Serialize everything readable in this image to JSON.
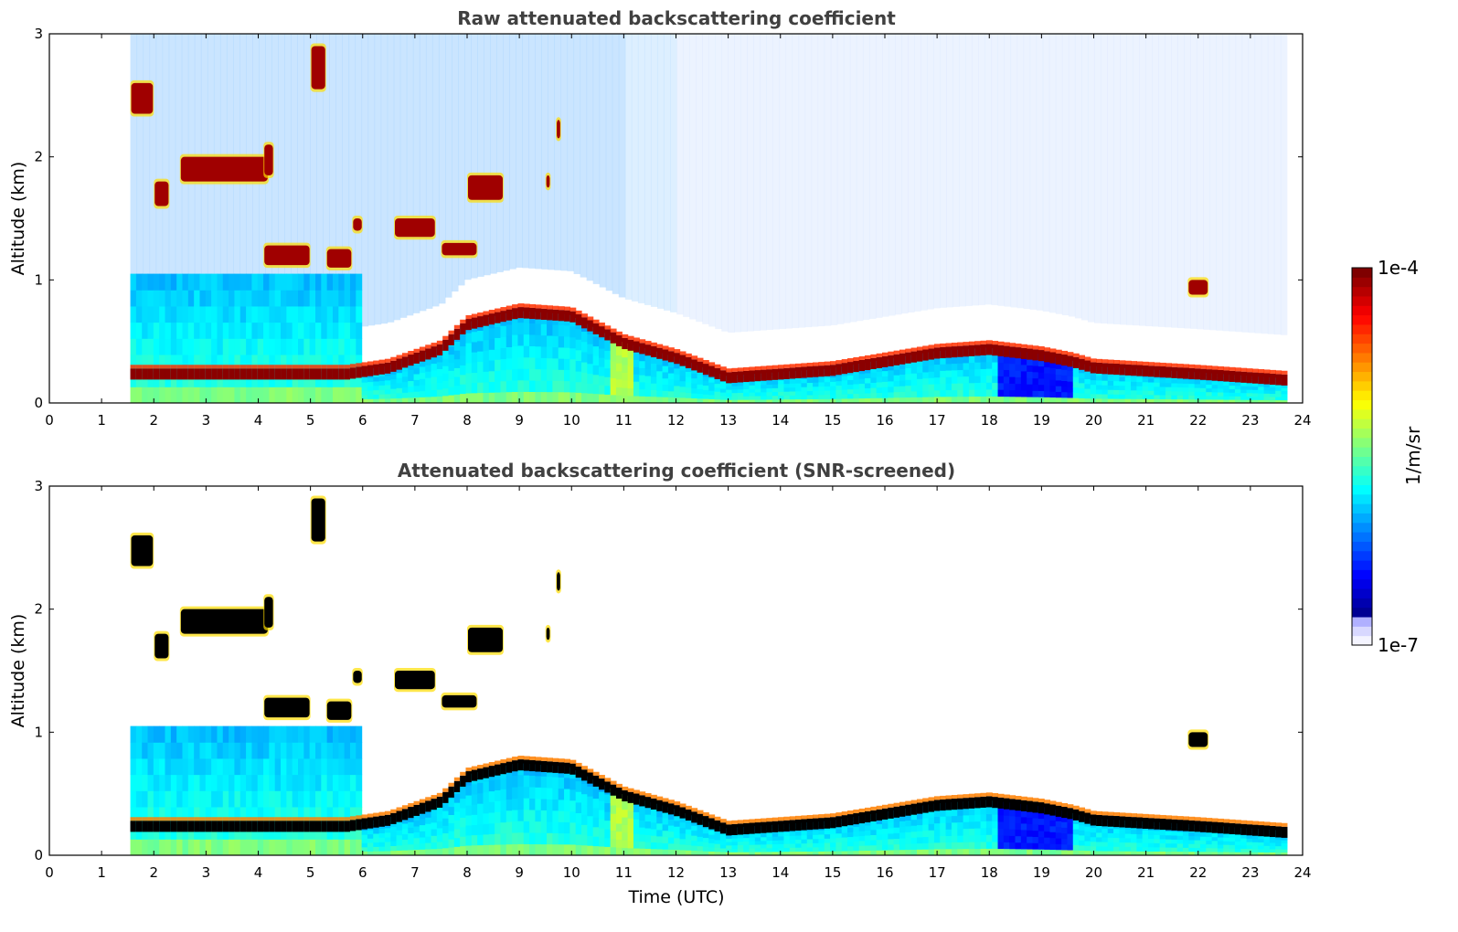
{
  "chart_data": [
    {
      "type": "heatmap",
      "title": "Raw attenuated backscattering coefficient",
      "xlabel": "",
      "ylabel": "Altitude (km)",
      "xlim": [
        0,
        24
      ],
      "ylim": [
        0,
        3
      ],
      "x_ticks": [
        "0",
        "1",
        "2",
        "3",
        "4",
        "5",
        "6",
        "7",
        "8",
        "9",
        "10",
        "11",
        "12",
        "13",
        "14",
        "15",
        "16",
        "17",
        "18",
        "19",
        "20",
        "21",
        "22",
        "23",
        "24"
      ],
      "y_ticks": [
        "0",
        "1",
        "2",
        "3"
      ],
      "data_start_time": 1.55,
      "data_end_time": 23.7,
      "layer_top_km": [
        [
          1.55,
          0.25
        ],
        [
          5.7,
          0.25
        ],
        [
          6.5,
          0.3
        ],
        [
          7.5,
          0.45
        ],
        [
          8.0,
          0.65
        ],
        [
          9.0,
          0.75
        ],
        [
          10.0,
          0.72
        ],
        [
          11.0,
          0.5
        ],
        [
          12.0,
          0.38
        ],
        [
          13.0,
          0.22
        ],
        [
          14.0,
          0.25
        ],
        [
          15.0,
          0.28
        ],
        [
          16.0,
          0.35
        ],
        [
          17.0,
          0.42
        ],
        [
          18.0,
          0.45
        ],
        [
          19.0,
          0.4
        ],
        [
          19.6,
          0.35
        ],
        [
          20.0,
          0.3
        ],
        [
          22.0,
          0.25
        ],
        [
          23.7,
          0.2
        ]
      ],
      "clouds": [
        {
          "t": [
            1.55,
            2.0
          ],
          "alt": [
            2.35,
            2.6
          ]
        },
        {
          "t": [
            2.0,
            2.3
          ],
          "alt": [
            1.6,
            1.8
          ]
        },
        {
          "t": [
            2.5,
            4.2
          ],
          "alt": [
            1.8,
            2.0
          ]
        },
        {
          "t": [
            4.1,
            4.3
          ],
          "alt": [
            1.85,
            2.1
          ]
        },
        {
          "t": [
            4.1,
            5.0
          ],
          "alt": [
            1.12,
            1.28
          ]
        },
        {
          "t": [
            5.0,
            5.3
          ],
          "alt": [
            2.55,
            2.9
          ]
        },
        {
          "t": [
            5.3,
            5.8
          ],
          "alt": [
            1.1,
            1.25
          ]
        },
        {
          "t": [
            5.8,
            6.0
          ],
          "alt": [
            1.4,
            1.5
          ]
        },
        {
          "t": [
            6.6,
            7.4
          ],
          "alt": [
            1.35,
            1.5
          ]
        },
        {
          "t": [
            7.5,
            8.2
          ],
          "alt": [
            1.2,
            1.3
          ]
        },
        {
          "t": [
            8.0,
            8.7
          ],
          "alt": [
            1.65,
            1.85
          ]
        },
        {
          "t": [
            9.5,
            9.6
          ],
          "alt": [
            1.75,
            1.85
          ]
        },
        {
          "t": [
            9.7,
            9.8
          ],
          "alt": [
            2.15,
            2.3
          ]
        },
        {
          "t": [
            21.8,
            22.2
          ],
          "alt": [
            0.88,
            1.0
          ]
        }
      ],
      "colorbar": {
        "label": "1/m/sr",
        "min_label": "1e-7",
        "max_label": "1e-4",
        "scale": "log",
        "colormap": "jet"
      }
    },
    {
      "type": "heatmap",
      "title": "Attenuated backscattering coefficient (SNR-screened)",
      "xlabel": "Time (UTC)",
      "ylabel": "Altitude (km)",
      "xlim": [
        0,
        24
      ],
      "ylim": [
        0,
        3
      ],
      "x_ticks": [
        "0",
        "1",
        "2",
        "3",
        "4",
        "5",
        "6",
        "7",
        "8",
        "9",
        "10",
        "11",
        "12",
        "13",
        "14",
        "15",
        "16",
        "17",
        "18",
        "19",
        "20",
        "21",
        "22",
        "23",
        "24"
      ],
      "y_ticks": [
        "0",
        "1",
        "2",
        "3"
      ],
      "screened": true,
      "saturated_color": "#000000"
    }
  ],
  "colors": {
    "jet": [
      "#00007f",
      "#0000ff",
      "#007fff",
      "#00ffff",
      "#7fff7f",
      "#ffff00",
      "#ff7f00",
      "#ff0000",
      "#7f0000"
    ],
    "low_end": [
      "#f4f4ff",
      "#d8d8ff",
      "#b0b0ff"
    ],
    "text": "#000000",
    "title": "#404040"
  }
}
